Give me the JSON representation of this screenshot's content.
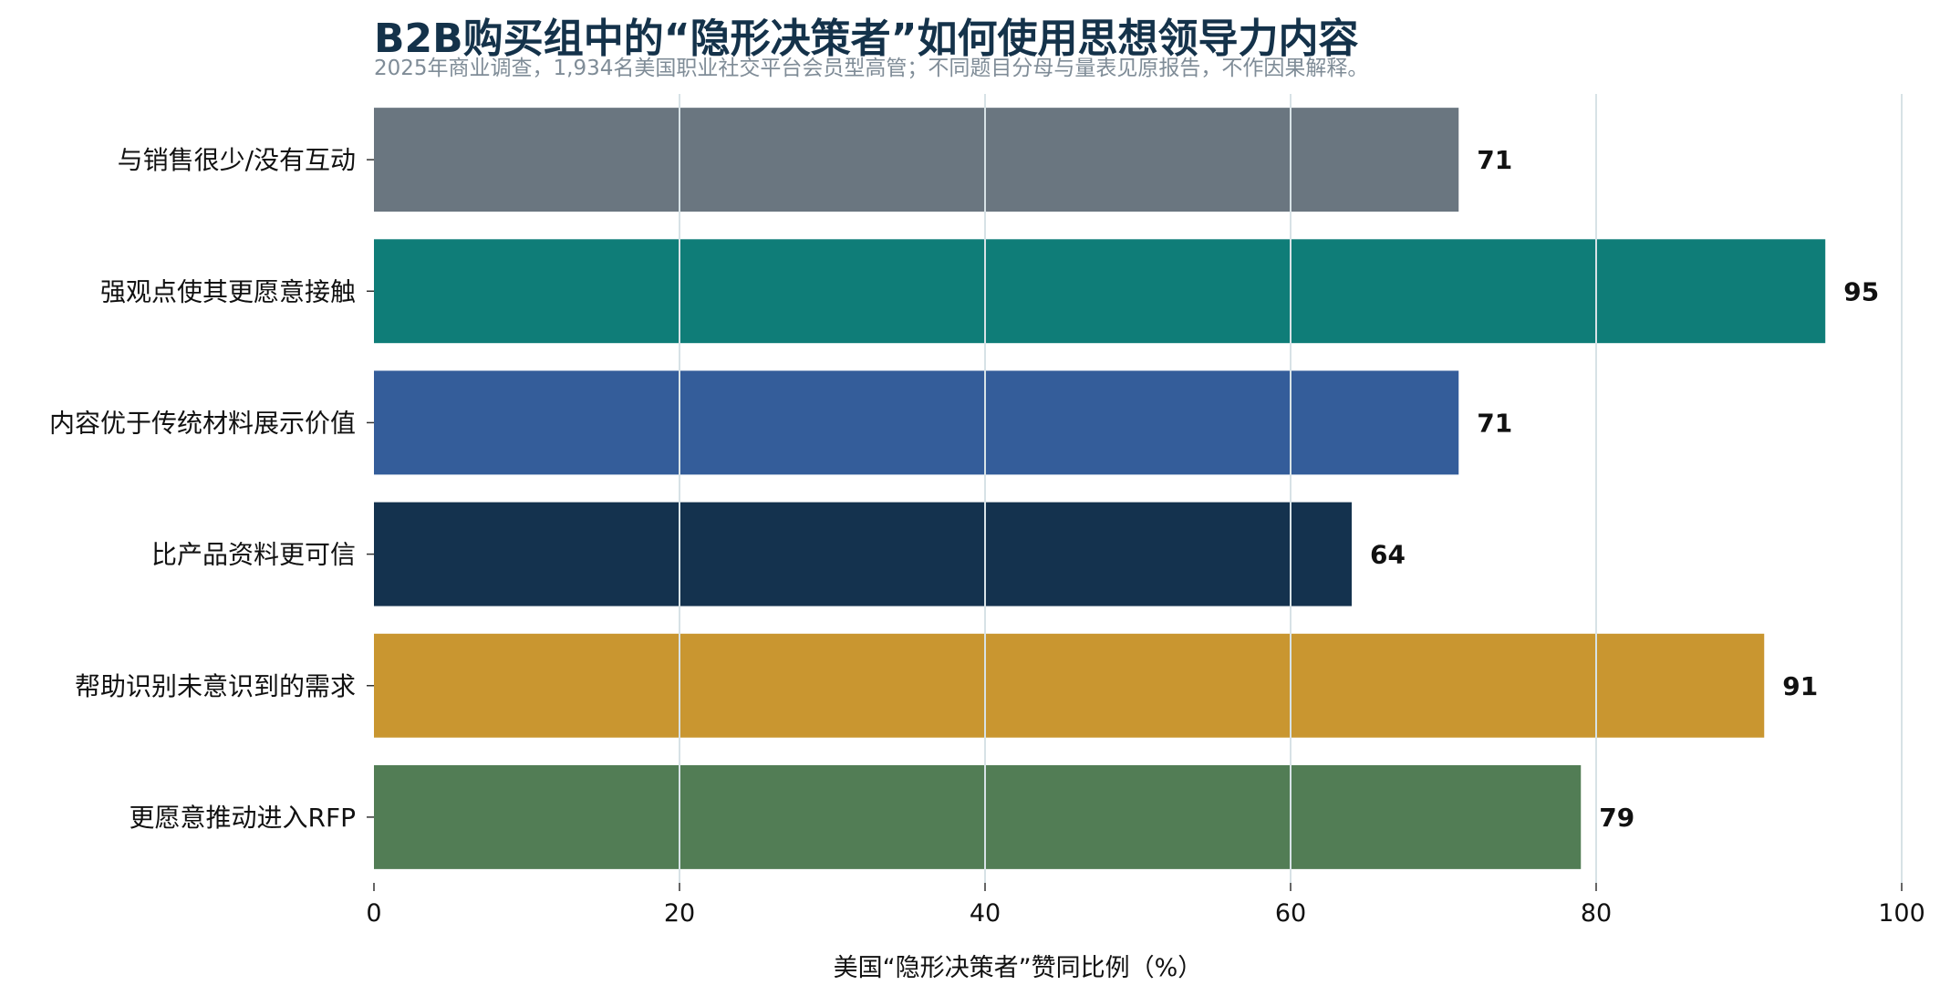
{
  "chart_data": {
    "type": "bar",
    "orientation": "horizontal",
    "title": "B2B购买组中的“隐形决策者”如何使用思想领导力内容",
    "subtitle": "2025年商业调查，1,934名美国职业社交平台会员型高管；不同题目分母与量表见原报告，不作因果解释。",
    "xlabel": "美国“隐形决策者”赞同比例（%）",
    "ylabel": "",
    "xlim": [
      0,
      100
    ],
    "xticks": [
      0,
      20,
      40,
      60,
      80,
      100
    ],
    "grid": true,
    "categories": [
      "与销售很少/没有互动",
      "强观点使其更愿意接触",
      "内容优于传统材料展示价值",
      "比产品资料更可信",
      "帮助识别未意识到的需求",
      "更愿意推动进入RFP"
    ],
    "values": [
      71,
      95,
      71,
      64,
      91,
      79
    ],
    "colors": [
      "#6a7680",
      "#0f7d78",
      "#345d9a",
      "#14324e",
      "#c99630",
      "#527d55"
    ],
    "grid_color": "#d7e2e6"
  }
}
